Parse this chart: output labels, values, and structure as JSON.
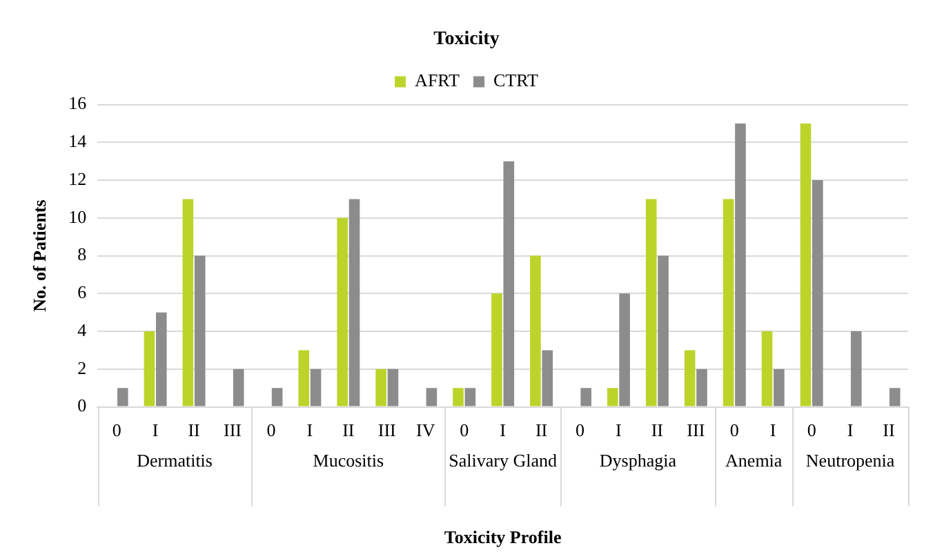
{
  "chart_data": {
    "type": "bar",
    "title": "Toxicity",
    "xlabel": "Toxicity Profile",
    "ylabel": "No. of Patients",
    "categories": [
      "0",
      "I",
      "II",
      "III",
      "0",
      "I",
      "II",
      "III",
      "IV",
      "0",
      "I",
      "II",
      "0",
      "I",
      "II",
      "III",
      "0",
      "I",
      "0",
      "I",
      "II"
    ],
    "annotations": [
      "Dermatitis",
      "Mucositis",
      "Salivary Gland",
      "Dysphagia",
      "Anemia",
      "Neutropenia"
    ],
    "series": [
      {
        "name": "AFRT",
        "color": "#bcd42a",
        "values": [
          0,
          4,
          11,
          0,
          0,
          3,
          10,
          2,
          0,
          1,
          6,
          8,
          0,
          1,
          11,
          3,
          11,
          4,
          15,
          0,
          0
        ]
      },
      {
        "name": "CTRT",
        "color": "#8c8c8c",
        "values": [
          1,
          5,
          8,
          2,
          1,
          2,
          11,
          2,
          1,
          1,
          13,
          3,
          1,
          6,
          8,
          2,
          15,
          2,
          12,
          4,
          1
        ]
      }
    ],
    "ylim": [
      0,
      16
    ],
    "yticks": [
      0,
      2,
      4,
      6,
      8,
      10,
      12,
      14,
      16
    ],
    "grid": "y",
    "legend": "top"
  }
}
